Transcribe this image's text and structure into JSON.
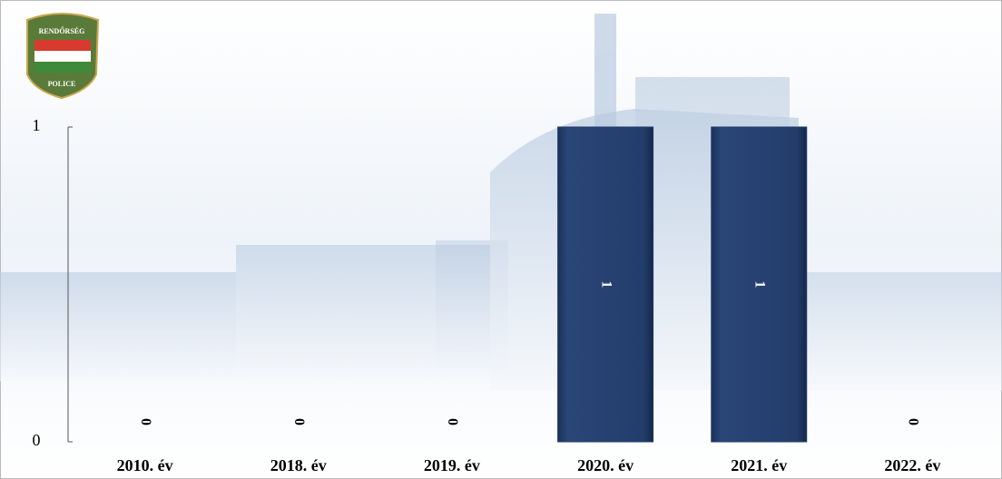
{
  "chart_data": {
    "type": "bar",
    "logo": {
      "top": "RENDŐRSÉG",
      "bottom": "POLICE"
    },
    "categories": [
      "2010. év",
      "2018. év",
      "2019. év",
      "2020. év",
      "2021. év",
      "2022. év"
    ],
    "values": [
      0,
      0,
      0,
      1,
      1,
      0
    ],
    "color": "#233d6b",
    "ylim": [
      0,
      1
    ],
    "yticks": [
      0,
      1
    ],
    "grid": false
  }
}
